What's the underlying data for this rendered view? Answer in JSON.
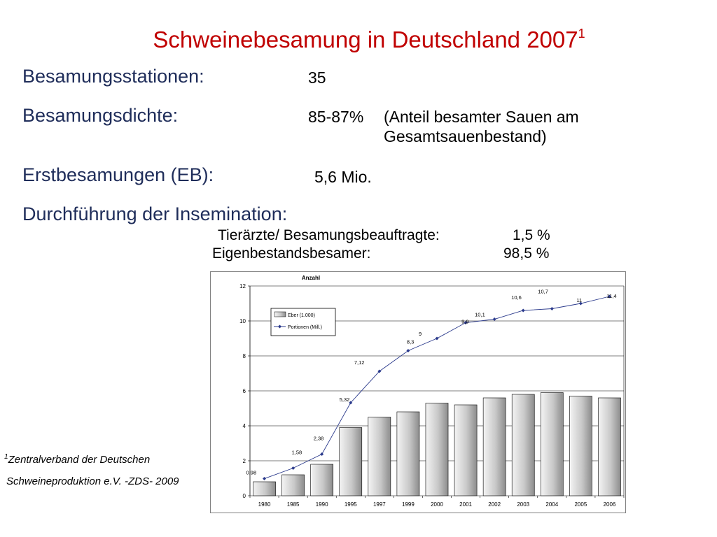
{
  "header": {
    "title": "Schweinebesamung in Deutschland 2007",
    "title_sup": "1"
  },
  "facts": {
    "stations_label": "Besamungsstationen:",
    "stations_value": "35",
    "density_label": "Besamungsdichte:",
    "density_value": "85-87%",
    "density_note_line1": "(Anteil besamter Sauen am",
    "density_note_line2": "Gesamtsauenbestand)",
    "first_label": "Erstbesamungen (EB):",
    "first_value": "5,6 Mio.",
    "execution_label": "Durchführung der Insemination:",
    "vet_label": "Tierärzte/ Besamungsbeauftragte:",
    "vet_value": "1,5 %",
    "own_label": "Eigenbestandsbesamer:",
    "own_value": "98,5 %"
  },
  "footnote": {
    "sup": "1",
    "line1": "Zentralverband der Deutschen",
    "line2": "Schweineproduktion e.V. -ZDS- 2009"
  },
  "colors": {
    "title": "#c00000",
    "labels": "#1f2d5a",
    "bar_fill_light": "#f4f4f4",
    "bar_fill_dark": "#8c8c8c",
    "line": "#2b3a8c"
  },
  "chart_data": {
    "type": "bar",
    "title": "Anzahl",
    "categories": [
      "1980",
      "1985",
      "1990",
      "1995",
      "1997",
      "1999",
      "2000",
      "2001",
      "2002",
      "2003",
      "2004",
      "2005",
      "2006"
    ],
    "series": [
      {
        "name": "Eber (1.000)",
        "type": "bar",
        "values": [
          0.8,
          1.2,
          1.8,
          3.9,
          4.5,
          4.8,
          5.3,
          5.2,
          5.6,
          5.8,
          5.9,
          5.7,
          5.6
        ]
      },
      {
        "name": "Portionen (Mill.)",
        "type": "line",
        "values": [
          0.98,
          1.58,
          2.38,
          5.32,
          7.12,
          8.3,
          9,
          9.9,
          10.1,
          10.6,
          10.7,
          11,
          11.4
        ],
        "labels": [
          "0,98",
          "1,58",
          "2,38",
          "5,32",
          "7,12",
          "8,3",
          "9",
          "9,9",
          "10,1",
          "10,6",
          "10,7",
          "11",
          "11,4"
        ]
      }
    ],
    "ylim": [
      0,
      12
    ],
    "yticks": [
      0,
      2,
      4,
      6,
      8,
      10,
      12
    ],
    "grid": true,
    "legend": "top-left"
  }
}
